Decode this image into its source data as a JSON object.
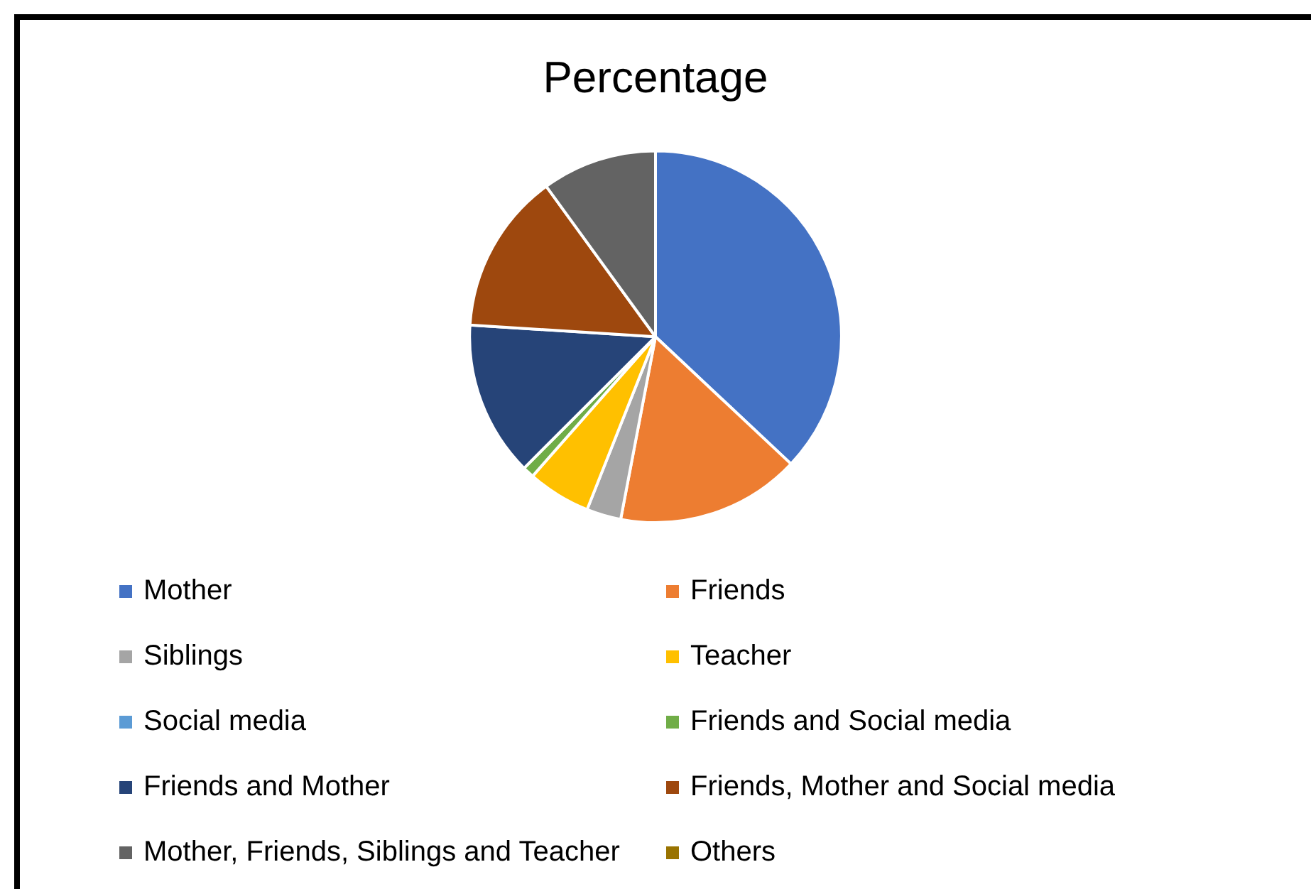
{
  "chart_data": {
    "type": "pie",
    "title": "Percentage",
    "categories": [
      "Mother",
      "Friends",
      "Siblings",
      "Teacher",
      "Social media",
      "Friends and Social media",
      "Friends and Mother",
      "Friends, Mother and Social media",
      "Mother, Friends, Siblings and Teacher",
      "Others"
    ],
    "values": [
      37,
      16,
      3,
      5.5,
      0,
      1,
      13.5,
      14,
      10,
      0
    ],
    "colors": [
      "#4472c4",
      "#ed7d31",
      "#a5a5a5",
      "#ffc000",
      "#5b9bd5",
      "#70ad47",
      "#264478",
      "#9e480e",
      "#636363",
      "#997300"
    ],
    "legend": "bottom"
  }
}
